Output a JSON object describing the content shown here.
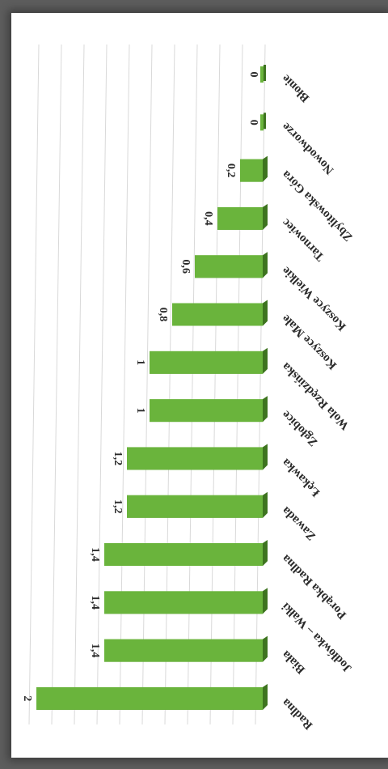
{
  "chart_data": {
    "type": "bar",
    "orientation": "horizontal-3d",
    "title": "",
    "xlabel": "",
    "ylabel": "",
    "categories": [
      "Radlna",
      "Biała",
      "Jodłówka – Wałki",
      "Porąbka Radlna",
      "Zawada",
      "Łękawka",
      "Zgłobice",
      "Wola Rzędzińska",
      "Koszyce Małe",
      "Koszyce Wielkie",
      "Tarnowiec",
      "Zbylitowska Góra",
      "Nowodworze",
      "Błonie"
    ],
    "values": [
      2,
      1.4,
      1.4,
      1.4,
      1.2,
      1.2,
      1,
      1,
      0.8,
      0.6,
      0.4,
      0.2,
      0,
      0
    ],
    "value_labels": [
      "2",
      "1,4",
      "1,4",
      "1,4",
      "1,2",
      "1,2",
      "1",
      "1",
      "0,8",
      "0,6",
      "0,4",
      "0,2",
      "0",
      "0"
    ],
    "vlim": [
      0,
      2
    ],
    "grid": true,
    "legend": "none",
    "colors": {
      "bar_front": "#6ab43c",
      "bar_top": "#4a8a28",
      "bar_side": "#3e7420",
      "grid": "#d9d9d9"
    }
  }
}
